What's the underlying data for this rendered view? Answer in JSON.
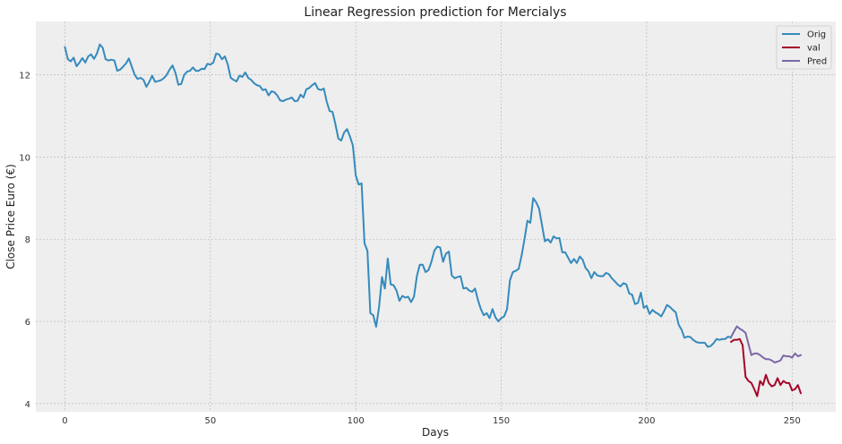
{
  "chart_data": {
    "type": "line",
    "title": "Linear Regression prediction for Mercialys",
    "xlabel": "Days",
    "ylabel": "Close Price Euro (€)",
    "xlim": [
      -10,
      265
    ],
    "ylim": [
      3.8,
      13.3
    ],
    "xticks": [
      0,
      50,
      100,
      150,
      200,
      250
    ],
    "yticks": [
      4,
      6,
      8,
      10,
      12
    ],
    "grid": true,
    "legend_position": "top-right",
    "series": [
      {
        "name": "Orig",
        "color": "#348abd",
        "x_start": 0,
        "values": [
          12.68,
          12.38,
          12.33,
          12.42,
          12.21,
          12.3,
          12.41,
          12.3,
          12.45,
          12.5,
          12.39,
          12.52,
          12.74,
          12.66,
          12.38,
          12.35,
          12.37,
          12.35,
          12.1,
          12.13,
          12.2,
          12.28,
          12.4,
          12.2,
          12.0,
          11.9,
          11.93,
          11.88,
          11.71,
          11.83,
          11.98,
          11.83,
          11.85,
          11.87,
          11.92,
          12.0,
          12.13,
          12.23,
          12.05,
          11.76,
          11.78,
          12.0,
          12.08,
          12.1,
          12.18,
          12.1,
          12.1,
          12.15,
          12.14,
          12.27,
          12.25,
          12.3,
          12.52,
          12.5,
          12.38,
          12.45,
          12.25,
          11.93,
          11.88,
          11.84,
          11.98,
          11.95,
          12.06,
          11.93,
          11.88,
          11.8,
          11.75,
          11.73,
          11.63,
          11.65,
          11.5,
          11.6,
          11.58,
          11.5,
          11.38,
          11.36,
          11.4,
          11.42,
          11.45,
          11.36,
          11.37,
          11.52,
          11.45,
          11.65,
          11.68,
          11.75,
          11.8,
          11.66,
          11.63,
          11.67,
          11.35,
          11.12,
          11.1,
          10.8,
          10.45,
          10.4,
          10.6,
          10.68,
          10.5,
          10.28,
          9.55,
          9.33,
          9.36,
          7.9,
          7.72,
          6.2,
          6.15,
          5.87,
          6.35,
          7.08,
          6.8,
          7.53,
          6.9,
          6.88,
          6.75,
          6.5,
          6.62,
          6.58,
          6.6,
          6.47,
          6.6,
          7.1,
          7.38,
          7.38,
          7.2,
          7.25,
          7.45,
          7.72,
          7.82,
          7.8,
          7.45,
          7.65,
          7.7,
          7.12,
          7.05,
          7.08,
          7.1,
          6.8,
          6.82,
          6.75,
          6.72,
          6.8,
          6.52,
          6.3,
          6.15,
          6.2,
          6.08,
          6.3,
          6.1,
          6.0,
          6.08,
          6.12,
          6.3,
          7.0,
          7.2,
          7.23,
          7.28,
          7.6,
          8.0,
          8.45,
          8.4,
          9.0,
          8.9,
          8.75,
          8.35,
          7.95,
          8.0,
          7.92,
          8.07,
          8.02,
          8.03,
          7.68,
          7.68,
          7.55,
          7.42,
          7.52,
          7.42,
          7.58,
          7.5,
          7.3,
          7.22,
          7.05,
          7.2,
          7.12,
          7.1,
          7.1,
          7.18,
          7.15,
          7.05,
          6.98,
          6.9,
          6.85,
          6.93,
          6.9,
          6.68,
          6.65,
          6.42,
          6.45,
          6.7,
          6.33,
          6.38,
          6.18,
          6.28,
          6.22,
          6.18,
          6.12,
          6.25,
          6.4,
          6.35,
          6.28,
          6.22,
          5.92,
          5.8,
          5.6,
          5.63,
          5.62,
          5.55,
          5.5,
          5.48,
          5.48,
          5.48,
          5.38,
          5.4,
          5.47,
          5.57,
          5.55,
          5.57,
          5.57,
          5.63,
          5.6
        ]
      },
      {
        "name": "val",
        "color": "#a60628",
        "x_start": 229,
        "values": [
          5.5,
          5.55,
          5.55,
          5.57,
          5.42,
          4.65,
          4.55,
          4.5,
          4.35,
          4.18,
          4.55,
          4.45,
          4.7,
          4.5,
          4.42,
          4.45,
          4.62,
          4.45,
          4.55,
          4.5,
          4.5,
          4.32,
          4.35,
          4.45,
          4.25
        ]
      },
      {
        "name": "Pred",
        "color": "#7a68a6",
        "x_start": 229,
        "values": [
          5.62,
          5.75,
          5.88,
          5.82,
          5.78,
          5.72,
          5.45,
          5.18,
          5.22,
          5.22,
          5.18,
          5.12,
          5.08,
          5.08,
          5.05,
          5.0,
          5.02,
          5.05,
          5.17,
          5.15,
          5.15,
          5.12,
          5.22,
          5.15,
          5.18
        ]
      }
    ]
  }
}
